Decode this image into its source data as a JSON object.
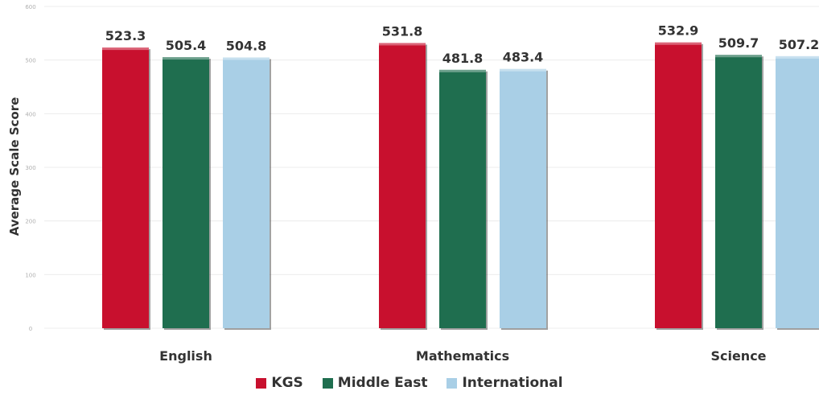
{
  "chart_data": {
    "type": "bar",
    "title": "",
    "xlabel": "",
    "ylabel": "Average Scale Score",
    "ylim": [
      0,
      600
    ],
    "yticks": [
      "0",
      "100",
      "200",
      "300",
      "400",
      "500",
      "600"
    ],
    "categories": [
      "English",
      "Mathematics",
      "Science"
    ],
    "series": [
      {
        "name": "KGS",
        "color": "#c8102e",
        "values": [
          523.3,
          531.8,
          532.9
        ],
        "labels": [
          "523.3",
          "531.8",
          "532.9"
        ]
      },
      {
        "name": "Middle East",
        "color": "#1f6e4f",
        "values": [
          505.4,
          481.8,
          509.7
        ],
        "labels": [
          "505.4",
          "481.8",
          "509.7"
        ]
      },
      {
        "name": "International",
        "color": "#a9cfe6",
        "values": [
          504.8,
          483.4,
          507.2
        ],
        "labels": [
          "504.8",
          "483.4",
          "507.2"
        ]
      }
    ],
    "grid": true,
    "legend_position": "bottom"
  }
}
